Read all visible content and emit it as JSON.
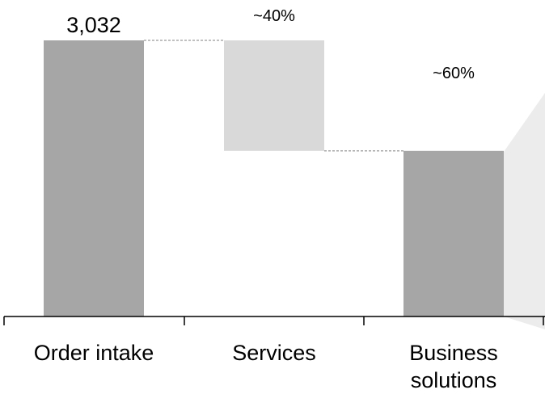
{
  "chart_data": {
    "type": "bar",
    "variant": "waterfall",
    "categories": [
      "Order intake",
      "Services",
      "Business\nsolutions"
    ],
    "values": [
      3032,
      1213,
      1819
    ],
    "bar_labels": [
      "3,032",
      "~40%",
      "~60%"
    ],
    "ylim": [
      0,
      3032
    ],
    "grid": false,
    "legend": "none",
    "colors": {
      "total": "#a6a6a6",
      "step": "#d9d9d9",
      "connector": "#808080",
      "axis": "#000000",
      "callout": "#ececec"
    }
  }
}
